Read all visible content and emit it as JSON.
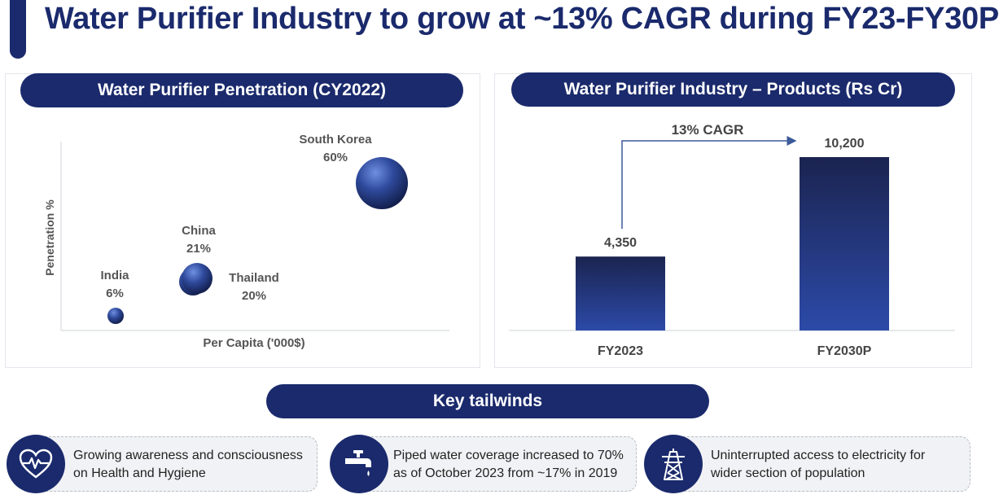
{
  "header": {
    "title": "Water Purifier Industry to grow at ~13% CAGR during FY23-FY30P"
  },
  "colors": {
    "navy": "#1a2a6c",
    "bubble": "#2f4a9c",
    "bar_top": "#1b2450",
    "bar_bottom": "#2c4aa8"
  },
  "chart_data": [
    {
      "type": "scatter",
      "title": "Water Purifier Penetration (CY2022)",
      "xlabel": "Per Capita ('000$)",
      "ylabel": "Penetration %",
      "series": [
        {
          "points": [
            {
              "label": "India",
              "value_label": "6%",
              "y": 6
            },
            {
              "label": "China",
              "value_label": "21%",
              "y": 21
            },
            {
              "label": "Thailand",
              "value_label": "20%",
              "y": 20
            },
            {
              "label": "South Korea",
              "value_label": "60%",
              "y": 60
            }
          ]
        }
      ]
    },
    {
      "type": "bar",
      "title": "Water Purifier Industry – Products (Rs Cr)",
      "categories": [
        "FY2023",
        "FY2030P"
      ],
      "values": [
        4350,
        10200
      ],
      "value_labels": [
        "4,350",
        "10,200"
      ],
      "annotation": "13% CAGR"
    }
  ],
  "tailwinds": {
    "title": "Key tailwinds",
    "items": [
      {
        "icon": "heart-pulse-icon",
        "text_1": "Growing awareness and consciousness",
        "text_2": "on Health and Hygiene"
      },
      {
        "icon": "water-tap-icon",
        "text_1": "Piped water coverage increased to 70%",
        "text_2": "as of October 2023 from ~17% in 2019"
      },
      {
        "icon": "power-tower-icon",
        "text_1": "Uninterrupted access to electricity for",
        "text_2": "wider section of population"
      }
    ]
  }
}
